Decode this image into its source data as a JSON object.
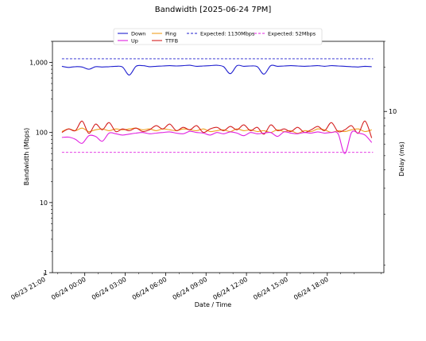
{
  "chart_data": {
    "type": "line",
    "title": "Bandwidth [2025-06-24 7PM]",
    "xlabel": "Date / Time",
    "ylabel": "Bandwidth (Mbps)",
    "y2label": "Delay (ms)",
    "x_ticks": [
      "06/23 21:00",
      "06/24 00:00",
      "06/24 03:00",
      "06/24 06:00",
      "06/24 09:00",
      "06/24 12:00",
      "06/24 15:00",
      "06/24 18:00"
    ],
    "x_range_hours": [
      -2.4,
      22.2
    ],
    "y_scale": "log",
    "ylim": [
      1,
      2000
    ],
    "y_ticks": [
      "1",
      "10",
      "100",
      "1,000"
    ],
    "y2_scale": "log",
    "y2_ticks": [
      "10"
    ],
    "legend_position": "top",
    "grid": false,
    "series": [
      {
        "name": "Down",
        "axis": "left",
        "color": "#1f1fcf",
        "dash": "solid",
        "x": [
          -1.7,
          -1.2,
          -0.7,
          -0.2,
          0.3,
          0.8,
          1.3,
          1.8,
          2.3,
          2.8,
          3.3,
          3.8,
          4.3,
          4.8,
          5.3,
          5.8,
          6.3,
          6.8,
          7.3,
          7.8,
          8.3,
          8.8,
          9.3,
          9.8,
          10.3,
          10.8,
          11.3,
          11.8,
          12.3,
          12.8,
          13.3,
          13.8,
          14.3,
          14.8,
          15.3,
          15.8,
          16.3,
          16.8,
          17.3,
          17.8,
          18.3,
          18.8,
          19.3,
          19.8,
          20.3,
          20.8,
          21.3
        ],
        "values": [
          880,
          850,
          870,
          860,
          800,
          870,
          860,
          870,
          880,
          860,
          660,
          880,
          900,
          870,
          880,
          890,
          900,
          890,
          900,
          910,
          880,
          890,
          900,
          910,
          870,
          690,
          900,
          880,
          890,
          870,
          680,
          900,
          880,
          890,
          900,
          890,
          880,
          890,
          900,
          880,
          900,
          890,
          880,
          870,
          860,
          880,
          870
        ]
      },
      {
        "name": "Up",
        "axis": "left",
        "color": "#e020e0",
        "dash": "solid",
        "x": [
          -1.7,
          -1.2,
          -0.7,
          -0.2,
          0.3,
          0.8,
          1.3,
          1.8,
          2.3,
          2.8,
          3.3,
          3.8,
          4.3,
          4.8,
          5.3,
          5.8,
          6.3,
          6.8,
          7.3,
          7.8,
          8.3,
          8.8,
          9.3,
          9.8,
          10.3,
          10.8,
          11.3,
          11.8,
          12.3,
          12.8,
          13.3,
          13.8,
          14.3,
          14.8,
          15.3,
          15.8,
          16.3,
          16.8,
          17.3,
          17.8,
          18.3,
          18.8,
          19.3,
          19.8,
          20.3,
          20.8,
          21.3
        ],
        "values": [
          85,
          86,
          80,
          70,
          90,
          88,
          75,
          98,
          96,
          92,
          95,
          98,
          100,
          96,
          98,
          100,
          102,
          98,
          96,
          104,
          100,
          98,
          92,
          100,
          96,
          102,
          98,
          90,
          100,
          96,
          98,
          100,
          88,
          102,
          98,
          96,
          100,
          98,
          102,
          98,
          100,
          96,
          50,
          100,
          98,
          92,
          72
        ]
      },
      {
        "name": "Ping",
        "axis": "right",
        "color": "#f0a020",
        "dash": "solid",
        "x": [
          -1.7,
          -1.2,
          -0.7,
          -0.2,
          0.3,
          0.8,
          1.3,
          1.8,
          2.3,
          2.8,
          3.3,
          3.8,
          4.3,
          4.8,
          5.3,
          5.8,
          6.3,
          6.8,
          7.3,
          7.8,
          8.3,
          8.8,
          9.3,
          9.8,
          10.3,
          10.8,
          11.3,
          11.8,
          12.3,
          12.8,
          13.3,
          13.8,
          14.3,
          14.8,
          15.3,
          15.8,
          16.3,
          16.8,
          17.3,
          17.8,
          18.3,
          18.8,
          19.3,
          19.8,
          20.3,
          20.8,
          21.3
        ],
        "values": [
          7.3,
          7.6,
          7.4,
          7.7,
          7.3,
          7.5,
          7.6,
          7.4,
          7.6,
          7.5,
          7.6,
          7.7,
          7.5,
          7.6,
          7.4,
          7.6,
          7.5,
          7.4,
          7.6,
          7.5,
          7.4,
          7.6,
          7.3,
          7.4,
          7.5,
          7.3,
          7.6,
          7.4,
          7.5,
          7.3,
          7.4,
          7.2,
          7.5,
          7.3,
          7.4,
          7.1,
          7.4,
          7.3,
          7.6,
          7.5,
          7.2,
          7.4,
          7.3,
          7.5,
          7.6,
          7.3,
          7.5
        ]
      },
      {
        "name": "TTFB",
        "axis": "right",
        "color": "#d42020",
        "dash": "solid",
        "x": [
          -1.7,
          -1.2,
          -0.7,
          -0.2,
          0.3,
          0.8,
          1.3,
          1.8,
          2.3,
          2.8,
          3.3,
          3.8,
          4.3,
          4.8,
          5.3,
          5.8,
          6.3,
          6.8,
          7.3,
          7.8,
          8.3,
          8.8,
          9.3,
          9.8,
          10.3,
          10.8,
          11.3,
          11.8,
          12.3,
          12.8,
          13.3,
          13.8,
          14.3,
          14.8,
          15.3,
          15.8,
          16.3,
          16.8,
          17.3,
          17.8,
          18.3,
          18.8,
          19.3,
          19.8,
          20.3,
          20.8,
          21.3
        ],
        "values": [
          7.2,
          7.6,
          7.4,
          8.6,
          7.1,
          8.2,
          7.5,
          8.4,
          7.3,
          7.6,
          7.4,
          7.7,
          7.3,
          7.5,
          8.0,
          7.6,
          8.2,
          7.4,
          7.8,
          7.5,
          8.0,
          7.2,
          7.6,
          7.8,
          7.4,
          7.9,
          7.5,
          8.1,
          7.4,
          7.8,
          7.0,
          8.1,
          7.4,
          7.6,
          7.3,
          7.8,
          7.2,
          7.5,
          7.9,
          7.4,
          8.4,
          7.3,
          7.5,
          8.0,
          7.1,
          8.6,
          6.6
        ]
      },
      {
        "name": "Expected: 1130Mbps",
        "axis": "left",
        "color": "#1f1fcf",
        "dash": "dashed",
        "x": [
          -1.7,
          21.4
        ],
        "values": [
          1130,
          1130
        ]
      },
      {
        "name": "Expected: 52Mbps",
        "axis": "left",
        "color": "#e020e0",
        "dash": "dashed",
        "x": [
          -1.7,
          21.4
        ],
        "values": [
          52,
          52
        ]
      }
    ]
  }
}
